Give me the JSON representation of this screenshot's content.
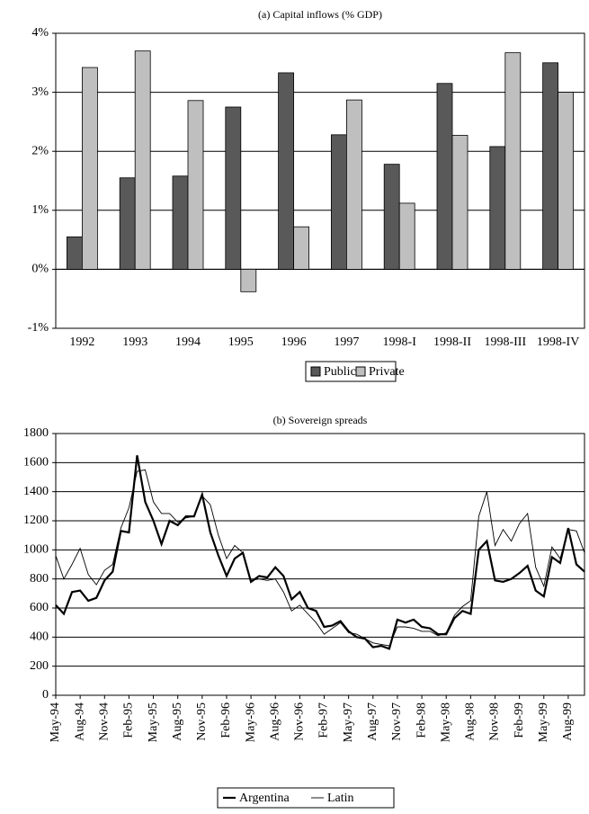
{
  "chart_data": [
    {
      "type": "bar",
      "title": "(a) Capital inflows (% GDP)",
      "categories": [
        "1992",
        "1993",
        "1994",
        "1995",
        "1996",
        "1997",
        "1998-I",
        "1998-II",
        "1998-III",
        "1998-IV"
      ],
      "series": [
        {
          "name": "Public",
          "color": "#595959",
          "values": [
            0.55,
            1.55,
            1.58,
            2.75,
            3.33,
            2.28,
            1.78,
            3.15,
            2.08,
            3.5
          ]
        },
        {
          "name": "Private",
          "color": "#bfbfbf",
          "values": [
            3.42,
            3.7,
            2.86,
            -0.38,
            0.72,
            2.87,
            1.12,
            2.27,
            3.67,
            3.0
          ]
        }
      ],
      "ylim": [
        -1,
        4
      ],
      "yticks": [
        {
          "value": -1,
          "label": "-1%"
        },
        {
          "value": 0,
          "label": "0%"
        },
        {
          "value": 1,
          "label": "1%"
        },
        {
          "value": 2,
          "label": "2%"
        },
        {
          "value": 3,
          "label": "3%"
        },
        {
          "value": 4,
          "label": "4%"
        }
      ],
      "grid": true,
      "legend": "bottom"
    },
    {
      "type": "line",
      "title": "(b) Sovereign spreads",
      "categories": [
        "May-94",
        null,
        null,
        "Aug-94",
        null,
        null,
        "Nov-94",
        null,
        null,
        "Feb-95",
        null,
        null,
        "May-95",
        null,
        null,
        "Aug-95",
        null,
        null,
        "Nov-95",
        null,
        null,
        "Feb-96",
        null,
        null,
        "May-96",
        null,
        null,
        "Aug-96",
        null,
        null,
        "Nov-96",
        null,
        null,
        "Feb-97",
        null,
        null,
        "May-97",
        null,
        null,
        "Aug-97",
        null,
        null,
        "Nov-97",
        null,
        null,
        "Feb-98",
        null,
        null,
        "May-98",
        null,
        null,
        "Aug-98",
        null,
        null,
        "Nov-98",
        null,
        null,
        "Feb-99",
        null,
        null,
        "May-99",
        null,
        null,
        "Aug-99",
        null,
        null
      ],
      "series": [
        {
          "name": "Argentina",
          "color": "#000000",
          "values": [
            620,
            560,
            710,
            720,
            650,
            670,
            790,
            850,
            1130,
            1120,
            1650,
            1330,
            1200,
            1040,
            1200,
            1170,
            1230,
            1230,
            1380,
            1120,
            960,
            820,
            940,
            980,
            780,
            820,
            810,
            880,
            820,
            660,
            710,
            600,
            580,
            470,
            480,
            510,
            440,
            400,
            390,
            330,
            340,
            320,
            520,
            500,
            520,
            470,
            460,
            420,
            420,
            530,
            580,
            560,
            1000,
            1060,
            790,
            780,
            800,
            840,
            890,
            720,
            680,
            950,
            910,
            1150,
            900,
            850
          ]
        },
        {
          "name": "Latin",
          "color": "#000000",
          "values": [
            960,
            800,
            900,
            1010,
            830,
            760,
            860,
            900,
            1150,
            1290,
            1540,
            1550,
            1330,
            1250,
            1250,
            1190,
            1220,
            1230,
            1370,
            1310,
            1100,
            940,
            1030,
            980,
            790,
            800,
            790,
            800,
            710,
            580,
            620,
            560,
            500,
            420,
            460,
            500,
            430,
            420,
            390,
            360,
            350,
            340,
            470,
            470,
            460,
            440,
            440,
            410,
            430,
            550,
            610,
            650,
            1230,
            1400,
            1030,
            1140,
            1060,
            1180,
            1250,
            880,
            750,
            1020,
            940,
            1140,
            1130,
            980
          ]
        }
      ],
      "ylim": [
        0,
        1800
      ],
      "yticks": [
        0,
        200,
        400,
        600,
        800,
        1000,
        1200,
        1400,
        1600,
        1800
      ],
      "grid": true,
      "legend": "bottom"
    }
  ]
}
